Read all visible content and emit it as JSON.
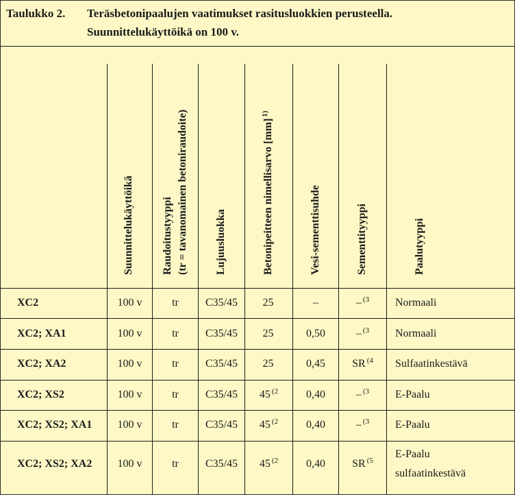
{
  "caption": {
    "number": "Taulukko 2.",
    "line1": "Teräsbetonipaalujen vaatimukset rasitusluokkien perusteella.",
    "line2": "Suunnittelukäyttöikä on 100 v."
  },
  "headers": {
    "design_life": "Suunnittelukäyttöikä",
    "reinforcement_line1": "Raudoitustyyppi",
    "reinforcement_line2": "(tr = tavanomainen betoniraudoite)",
    "strength": "Lujuusluokka",
    "cover": "Betonipeitteen nimellisarvo [mm]",
    "cover_sup": "1)",
    "wc_ratio": "Vesi-sementtisuhde",
    "cement": "Sementtityyppi",
    "pile": "Paalutyyppi"
  },
  "rows": [
    {
      "exposure": "XC2",
      "life": "100 v",
      "reinf": "tr",
      "strength": "C35/45",
      "cover": "25",
      "cover_sup": "",
      "wc": "–",
      "cement": "–",
      "cement_sup": "(3",
      "pile1": "Normaali",
      "pile2": ""
    },
    {
      "exposure": "XC2; XA1",
      "life": "100 v",
      "reinf": "tr",
      "strength": "C35/45",
      "cover": "25",
      "cover_sup": "",
      "wc": "0,50",
      "cement": "–",
      "cement_sup": "(3",
      "pile1": "Normaali",
      "pile2": ""
    },
    {
      "exposure": "XC2; XA2",
      "life": "100 v",
      "reinf": "tr",
      "strength": "C35/45",
      "cover": "25",
      "cover_sup": "",
      "wc": "0,45",
      "cement": "SR",
      "cement_sup": "(4",
      "pile1": "Sulfaatinkestävä",
      "pile2": ""
    },
    {
      "exposure": "XC2; XS2",
      "life": "100 v",
      "reinf": "tr",
      "strength": "C35/45",
      "cover": "45",
      "cover_sup": "(2",
      "wc": "0,40",
      "cement": "–",
      "cement_sup": "(3",
      "pile1": "E-Paalu",
      "pile2": ""
    },
    {
      "exposure": "XC2; XS2; XA1",
      "life": "100 v",
      "reinf": "tr",
      "strength": "C35/45",
      "cover": "45",
      "cover_sup": "(2",
      "wc": "0,40",
      "cement": "–",
      "cement_sup": "(3",
      "pile1": "E-Paalu",
      "pile2": ""
    },
    {
      "exposure": "XC2; XS2; XA2",
      "life": "100 v",
      "reinf": "tr",
      "strength": "C35/45",
      "cover": "45",
      "cover_sup": "(2",
      "wc": "0,40",
      "cement": "SR",
      "cement_sup": "(5",
      "pile1": "E-Paalu",
      "pile2": "sulfaatinkestävä"
    }
  ]
}
